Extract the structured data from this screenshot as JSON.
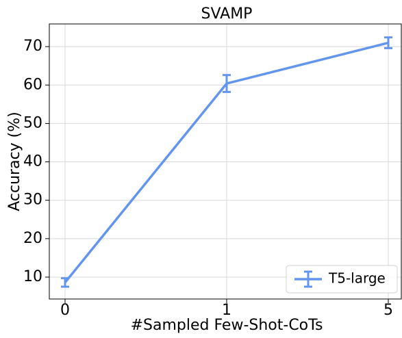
{
  "chart_data": {
    "type": "line",
    "title": "SVAMP",
    "x_label": "#Sampled Few-Shot-CoTs",
    "y_label": "Accuracy (%)",
    "categories": [
      "0",
      "1",
      "5"
    ],
    "series": [
      {
        "name": "T5-large",
        "color": "#6495ed",
        "values": [
          8.6,
          60.4,
          71.0
        ],
        "errors": [
          1.1,
          2.2,
          1.4
        ]
      }
    ],
    "ylim": [
      4.3,
      75.9
    ],
    "yticks": [
      10,
      20,
      30,
      40,
      50,
      60,
      70
    ],
    "grid": true,
    "legend": "lower right"
  }
}
